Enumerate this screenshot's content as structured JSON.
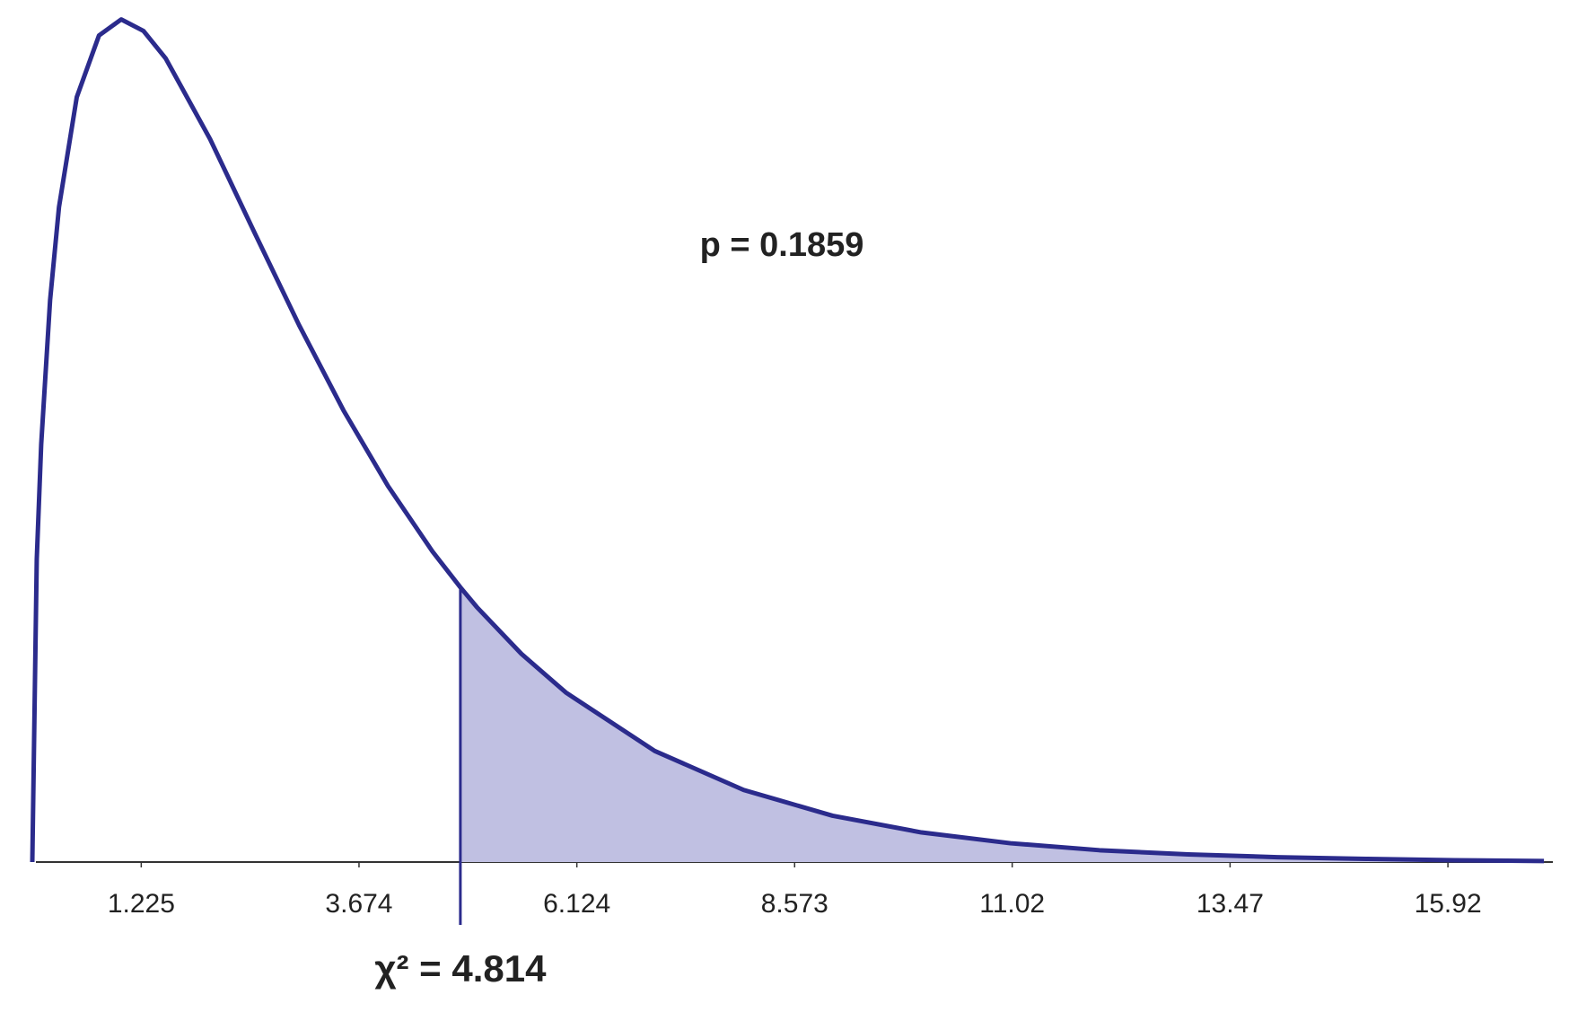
{
  "chart_data": {
    "type": "area",
    "x": [
      0,
      0.05,
      0.1,
      0.2,
      0.3,
      0.5,
      0.75,
      1,
      1.25,
      1.5,
      2,
      2.5,
      3,
      3.5,
      4,
      4.5,
      4.814,
      5,
      5.5,
      6,
      7,
      8,
      9,
      10,
      11,
      12,
      13,
      14,
      15,
      16,
      17
    ],
    "values": [
      0,
      0.087,
      0.12,
      0.1614,
      0.1881,
      0.2197,
      0.2374,
      0.242,
      0.2387,
      0.2308,
      0.2076,
      0.1807,
      0.1542,
      0.1297,
      0.108,
      0.0892,
      0.0789,
      0.0732,
      0.0598,
      0.0487,
      0.0319,
      0.0207,
      0.0133,
      0.0085,
      0.0054,
      0.0034,
      0.0022,
      0.0014,
      0.0009,
      0.0005,
      0.0003
    ],
    "color": "#2b2b8c",
    "fill": "#c0c0e2",
    "critical": {
      "value": 4.814,
      "label": "χ² = 4.814"
    },
    "p": {
      "value": 0.1859,
      "label": "p = 0.1859"
    },
    "xlim": [
      0,
      17.1
    ],
    "ylim": [
      0,
      0.245
    ],
    "xticks": [
      1.225,
      3.674,
      6.124,
      8.573,
      11.02,
      13.47,
      15.92
    ]
  }
}
